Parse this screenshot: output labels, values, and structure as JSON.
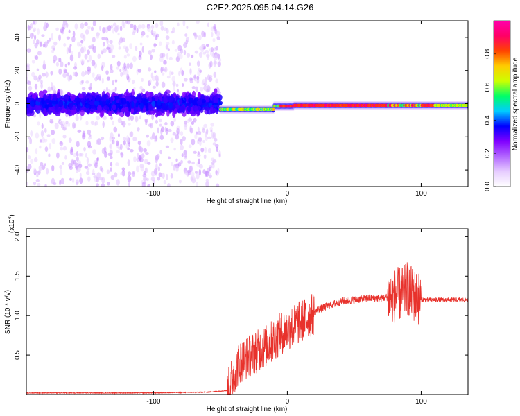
{
  "title": "C2E2.2025.095.04.14.G26",
  "chart_data": [
    {
      "type": "heatmap",
      "name": "spectrogram",
      "xlabel": "Height of straight line (km)",
      "ylabel": "Frequency (Hz)",
      "xlim": [
        -195,
        135
      ],
      "ylim": [
        -50,
        50
      ],
      "xticks": [
        -100,
        0,
        100
      ],
      "xtick_labels": [
        "-100",
        "0",
        "100"
      ],
      "yticks": [
        -40,
        -20,
        0,
        20,
        40
      ],
      "ytick_labels": [
        "-40",
        "-20",
        "0",
        "20",
        "40"
      ],
      "colorbar": {
        "label": "Normalized spectral amplitude",
        "range": [
          0,
          1
        ],
        "ticks": [
          0.0,
          0.2,
          0.4,
          0.6,
          0.8
        ],
        "tick_labels": [
          "0.0",
          "0.2",
          "0.4",
          "0.6",
          "0.8"
        ],
        "colormap": [
          "#ffffff",
          "#e6ccff",
          "#b266ff",
          "#8000ff",
          "#0000ff",
          "#00ccff",
          "#00ff66",
          "#ccff00",
          "#ffcc00",
          "#ff4400",
          "#ff0066",
          "#ff00aa"
        ]
      },
      "regions": [
        {
          "x_range": [
            -195,
            -50
          ],
          "description": "noise",
          "band_halfwidth_hz": 10,
          "scatter_halfwidth_hz": 50,
          "mean_amplitude": 0.12
        },
        {
          "x_range": [
            -50,
            135
          ],
          "description": "signal",
          "band_halfwidth_hz": 3,
          "mean_amplitude": 0.85
        }
      ]
    },
    {
      "type": "line",
      "name": "snr",
      "xlabel": "Height of straight line (km)",
      "ylabel": "SNR (10 * v/v)",
      "y_multiplier": "(x10^4)",
      "y_multiplier_base": "(x10",
      "y_multiplier_exp": "4",
      "y_multiplier_close": ")",
      "xlim": [
        -195,
        135
      ],
      "ylim": [
        0,
        2.1
      ],
      "xticks": [
        -100,
        0,
        100
      ],
      "xtick_labels": [
        "-100",
        "0",
        "100"
      ],
      "yticks": [
        0.5,
        1.0,
        1.5,
        2.0
      ],
      "ytick_labels": [
        "0.5",
        "1.0",
        "1.5",
        "2.0"
      ],
      "color": "#e8322c",
      "series": [
        {
          "name": "SNR",
          "x": [
            -195,
            -150,
            -100,
            -60,
            -45,
            -40,
            -35,
            -30,
            -25,
            -20,
            -15,
            -10,
            -5,
            0,
            5,
            10,
            15,
            20,
            30,
            40,
            50,
            60,
            70,
            80,
            85,
            88,
            90,
            92,
            95,
            100,
            110,
            120,
            130,
            135
          ],
          "y": [
            0.02,
            0.02,
            0.02,
            0.03,
            0.05,
            0.3,
            0.45,
            0.5,
            0.55,
            0.6,
            0.65,
            0.72,
            0.8,
            0.85,
            0.9,
            0.95,
            1.0,
            1.05,
            1.12,
            1.18,
            1.2,
            1.22,
            1.22,
            1.25,
            1.28,
            1.3,
            1.35,
            1.3,
            1.25,
            1.2,
            1.2,
            1.2,
            1.2,
            1.2
          ]
        }
      ]
    }
  ]
}
